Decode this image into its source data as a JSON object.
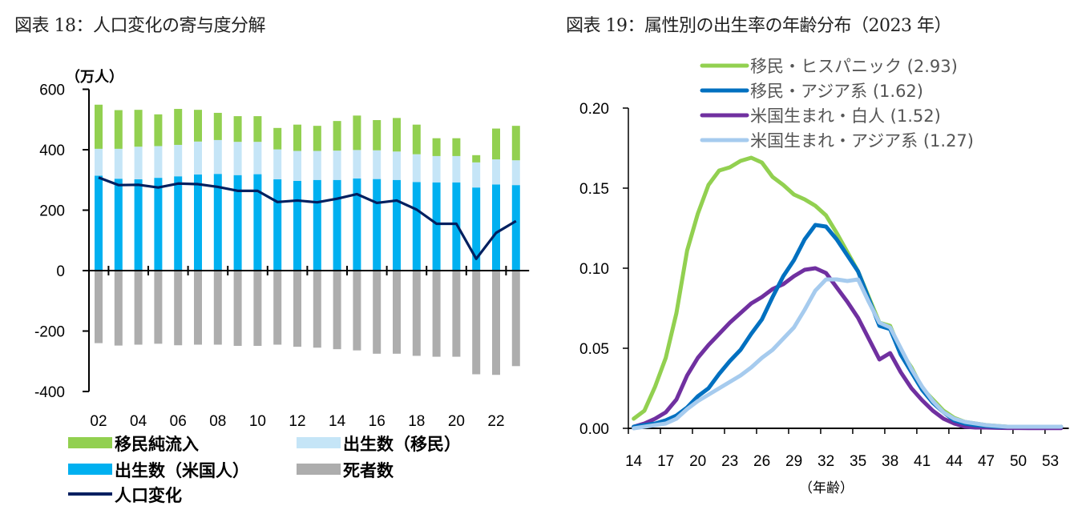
{
  "chart_data": [
    {
      "type": "bar",
      "subtype": "stacked-bar-with-line",
      "title": "図表 18：人口変化の寄与度分解",
      "ylabel": "（万人）",
      "xlabel": "",
      "ylim": [
        -400,
        600
      ],
      "yticks": [
        "600",
        "400",
        "200",
        "0",
        "-200",
        "-400"
      ],
      "ytick_values": [
        600,
        400,
        200,
        0,
        -200,
        -400
      ],
      "categories": [
        "02",
        "03",
        "04",
        "05",
        "06",
        "07",
        "08",
        "09",
        "10",
        "11",
        "12",
        "13",
        "14",
        "15",
        "16",
        "17",
        "18",
        "19",
        "20",
        "21",
        "22",
        "23"
      ],
      "xtick_labels": [
        "02",
        "04",
        "06",
        "08",
        "10",
        "12",
        "14",
        "16",
        "18",
        "20",
        "22"
      ],
      "legend_position": "bottom",
      "series": [
        {
          "name": "出生数（米国人）",
          "kind": "bar",
          "color": "#00b0f0",
          "values": [
            314,
            304,
            302,
            307,
            312,
            318,
            320,
            316,
            319,
            302,
            297,
            300,
            300,
            305,
            303,
            300,
            293,
            292,
            292,
            275,
            285,
            283
          ]
        },
        {
          "name": "出生数（移民）",
          "kind": "bar",
          "color": "#c5e5f7",
          "values": [
            89,
            99,
            108,
            105,
            104,
            109,
            112,
            110,
            107,
            99,
            99,
            96,
            97,
            94,
            95,
            94,
            92,
            87,
            87,
            83,
            83,
            82
          ]
        },
        {
          "name": "移民純流入",
          "kind": "bar",
          "color": "#92d050",
          "values": [
            146,
            128,
            122,
            105,
            119,
            105,
            90,
            85,
            85,
            71,
            87,
            83,
            98,
            114,
            100,
            111,
            98,
            59,
            59,
            24,
            102,
            114
          ]
        },
        {
          "name": "死者数",
          "kind": "bar",
          "color": "#adadad",
          "values": [
            -240,
            -248,
            -245,
            -242,
            -247,
            -245,
            -245,
            -249,
            -249,
            -245,
            -252,
            -255,
            -260,
            -264,
            -275,
            -275,
            -282,
            -285,
            -285,
            -343,
            -345,
            -316
          ]
        },
        {
          "name": "人口変化",
          "kind": "line",
          "color": "#002060",
          "values": [
            308,
            283,
            284,
            275,
            288,
            286,
            277,
            264,
            264,
            227,
            232,
            226,
            238,
            253,
            224,
            232,
            202,
            155,
            155,
            39,
            125,
            164
          ]
        }
      ],
      "legend": [
        {
          "label": "移民純流入",
          "color": "#92d050",
          "kind": "bar"
        },
        {
          "label": "出生数（移民）",
          "color": "#c5e5f7",
          "kind": "bar"
        },
        {
          "label": "出生数（米国人）",
          "color": "#00b0f0",
          "kind": "bar"
        },
        {
          "label": "死者数",
          "color": "#adadad",
          "kind": "bar"
        },
        {
          "label": "人口変化",
          "color": "#002060",
          "kind": "line"
        }
      ]
    },
    {
      "type": "line",
      "title": "図表 19：属性別の出生率の年齢分布（2023 年）",
      "xlabel": "（年齢）",
      "ylabel": "",
      "ylim": [
        0,
        0.2
      ],
      "yticks": [
        "0.20",
        "0.15",
        "0.10",
        "0.05",
        "0.00"
      ],
      "ytick_values": [
        0.2,
        0.15,
        0.1,
        0.05,
        0.0
      ],
      "x": [
        14,
        15,
        16,
        17,
        18,
        19,
        20,
        21,
        22,
        23,
        24,
        25,
        26,
        27,
        28,
        29,
        30,
        31,
        32,
        33,
        34,
        35,
        36,
        37,
        38,
        39,
        40,
        41,
        42,
        43,
        44,
        45,
        46,
        47,
        48,
        49,
        50,
        51,
        52,
        53,
        54
      ],
      "xtick_labels": [
        "14",
        "17",
        "20",
        "23",
        "26",
        "29",
        "32",
        "35",
        "38",
        "41",
        "44",
        "47",
        "50",
        "53"
      ],
      "legend_position": "top",
      "series": [
        {
          "name": "移民・ヒスパニック (2.93)",
          "color": "#92d050",
          "values": [
            0.006,
            0.011,
            0.026,
            0.044,
            0.072,
            0.111,
            0.134,
            0.152,
            0.161,
            0.163,
            0.167,
            0.169,
            0.166,
            0.157,
            0.152,
            0.146,
            0.143,
            0.139,
            0.133,
            0.122,
            0.11,
            0.098,
            0.082,
            0.066,
            0.064,
            0.048,
            0.038,
            0.025,
            0.018,
            0.011,
            0.0065,
            0.004,
            0.003,
            0.002,
            0.0015,
            0.001,
            0.001,
            0.001,
            0.001,
            0.001,
            0.001
          ]
        },
        {
          "name": "移民・アジア系 (1.62)",
          "color": "#0070c0",
          "values": [
            0.001,
            0.002,
            0.003,
            0.005,
            0.008,
            0.013,
            0.02,
            0.025,
            0.034,
            0.042,
            0.049,
            0.059,
            0.068,
            0.082,
            0.095,
            0.105,
            0.118,
            0.127,
            0.126,
            0.118,
            0.108,
            0.098,
            0.081,
            0.064,
            0.062,
            0.046,
            0.035,
            0.024,
            0.016,
            0.01,
            0.005,
            0.003,
            0.002,
            0.0015,
            0.001,
            0.001,
            0.001,
            0.001,
            0.001,
            0.001,
            0.001
          ]
        },
        {
          "name": "米国生まれ・白人 (1.52)",
          "color": "#7030a0",
          "values": [
            0.001,
            0.003,
            0.006,
            0.01,
            0.018,
            0.033,
            0.044,
            0.052,
            0.059,
            0.066,
            0.072,
            0.078,
            0.082,
            0.087,
            0.09,
            0.095,
            0.099,
            0.1,
            0.097,
            0.088,
            0.079,
            0.069,
            0.056,
            0.043,
            0.047,
            0.035,
            0.025,
            0.0175,
            0.011,
            0.006,
            0.003,
            0.001,
            0.0005,
            0.0005,
            0.0003,
            0.0002,
            0.0002,
            0.0001,
            0.0001,
            0.0001,
            0.0001
          ]
        },
        {
          "name": "米国生まれ・アジア系 (1.27)",
          "color": "#a6cbee",
          "values": [
            0.0,
            0.001,
            0.002,
            0.003,
            0.006,
            0.012,
            0.017,
            0.021,
            0.025,
            0.029,
            0.033,
            0.038,
            0.044,
            0.049,
            0.056,
            0.063,
            0.074,
            0.086,
            0.093,
            0.093,
            0.092,
            0.093,
            0.079,
            0.066,
            0.063,
            0.05,
            0.037,
            0.026,
            0.017,
            0.01,
            0.006,
            0.004,
            0.003,
            0.002,
            0.0015,
            0.001,
            0.001,
            0.001,
            0.001,
            0.001,
            0.001
          ]
        }
      ]
    }
  ]
}
